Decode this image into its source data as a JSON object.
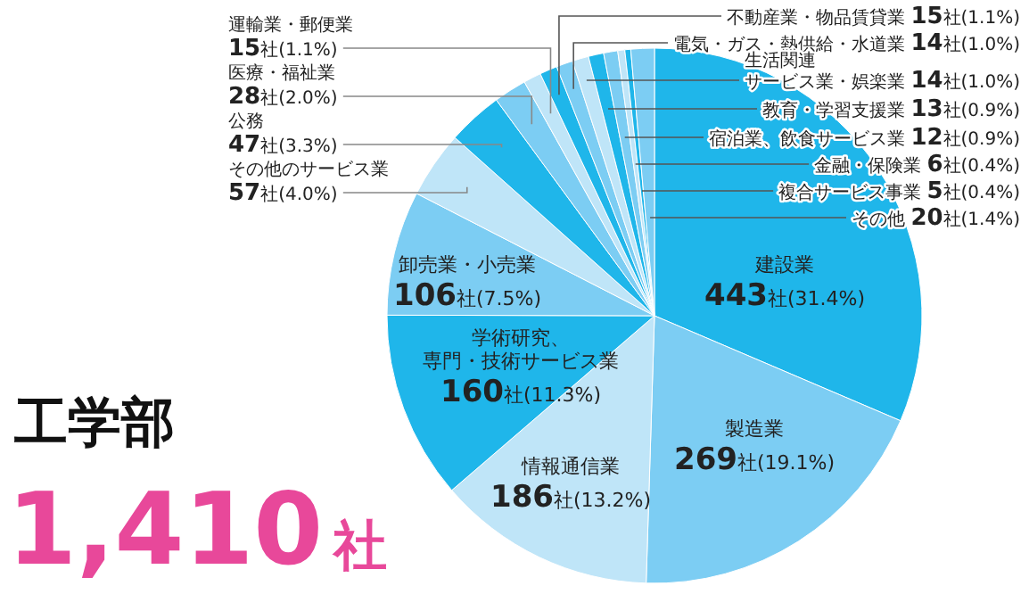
{
  "chart_data": {
    "type": "pie",
    "title": "工学部",
    "subtitle": "1,410社",
    "categories": [
      "建設業",
      "製造業",
      "情報通信業",
      "学術研究、専門・技術サービス業",
      "卸売業・小売業",
      "その他のサービス業",
      "公務",
      "医療・福祉業",
      "運輸業・郵便業",
      "不動産業・物品賃貸業",
      "電気・ガス・熱供給・水道業",
      "生活関連サービス業・娯楽業",
      "教育・学習支援業",
      "宿泊業、飲食サービス業",
      "金融・保険業",
      "複合サービス事業",
      "その他"
    ],
    "values": [
      443,
      269,
      186,
      160,
      106,
      57,
      47,
      28,
      15,
      15,
      14,
      14,
      13,
      12,
      6,
      5,
      20
    ],
    "colors": [
      "#1fb6ea",
      "#7ccdf3",
      "#bfe5f8",
      "#1fb6ea",
      "#7ccdf3",
      "#bfe5f8",
      "#1fb6ea",
      "#7ccdf3",
      "#bfe5f8",
      "#1fb6ea",
      "#7ccdf3",
      "#bfe5f8",
      "#1fb6ea",
      "#7ccdf3",
      "#bfe5f8",
      "#1fb6ea",
      "#7ccdf3"
    ],
    "value_labels": [
      "443社(31.4%)",
      "269社(19.1%)",
      "186社(13.2%)",
      "160社(11.3%)",
      "106社(7.5%)",
      "57社(4.0%)",
      "47社(3.3%)",
      "28社(2.0%)",
      "15社(1.1%)",
      "15社(1.1%)",
      "14社(1.0%)",
      "14社(1.0%)",
      "13社(0.9%)",
      "12社(0.9%)",
      "6社(0.4%)",
      "5社(0.4%)",
      "20社(1.4%)"
    ]
  }
}
